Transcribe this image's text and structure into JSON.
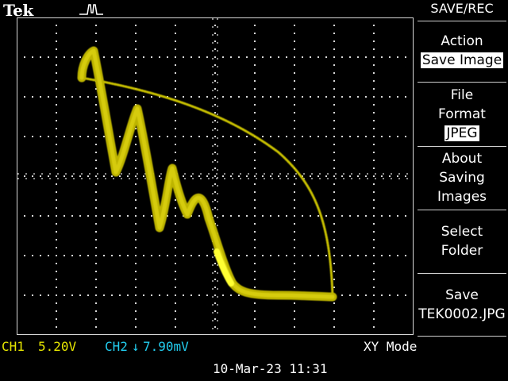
{
  "header": {
    "brand": "Tek",
    "trigger_icon": "pulse-trigger-icon"
  },
  "colors": {
    "background": "#000000",
    "trace": "#c8c000",
    "trace_bright": "#ffff30",
    "ch1": "#e6e600",
    "ch2": "#22ccee",
    "grid": "#d8d8d8",
    "highlight": "#ffffff"
  },
  "readouts": {
    "ch1_label": "CH1",
    "ch1_value": "5.20V",
    "ch2_label": "CH2",
    "ch2_arrow": "↓",
    "ch2_value": "7.90mV",
    "mode": "XY Mode",
    "datetime": "10-Mar-23 11:31"
  },
  "menu": {
    "title": "SAVE/REC",
    "buttons": [
      {
        "lines": [
          "Action"
        ],
        "value": "Save Image"
      },
      {
        "lines": [
          "File",
          "Format"
        ],
        "value": "JPEG"
      },
      {
        "lines": [
          "About",
          "Saving",
          "Images"
        ]
      },
      {
        "lines": [
          "Select",
          "Folder"
        ]
      },
      {
        "lines": [
          "Save",
          "TEK0002.JPG"
        ]
      }
    ]
  }
}
